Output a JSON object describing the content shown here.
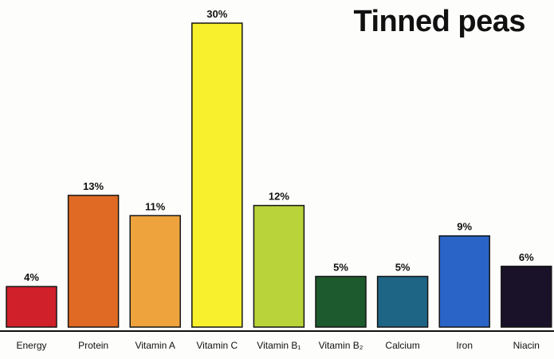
{
  "chart_data": {
    "type": "bar",
    "title": "Tinned peas",
    "xlabel": "",
    "ylabel": "",
    "ylim": [
      0,
      30
    ],
    "grid": false,
    "categories": [
      "Energy",
      "Protein",
      "Vitamin A",
      "Vitamin C",
      "Vitamin B₁",
      "Vitamin B₂",
      "Calcium",
      "Iron",
      "Niacin"
    ],
    "values": [
      4,
      13,
      11,
      30,
      12,
      5,
      5,
      9,
      6
    ],
    "value_labels": [
      "4%",
      "13%",
      "11%",
      "30%",
      "12%",
      "5%",
      "5%",
      "9%",
      "6%"
    ],
    "colors": [
      "#d0202a",
      "#e06a24",
      "#eea33c",
      "#f8f02c",
      "#b9d33a",
      "#1d5a2d",
      "#1e6484",
      "#2a64c6",
      "#1a1228"
    ]
  }
}
